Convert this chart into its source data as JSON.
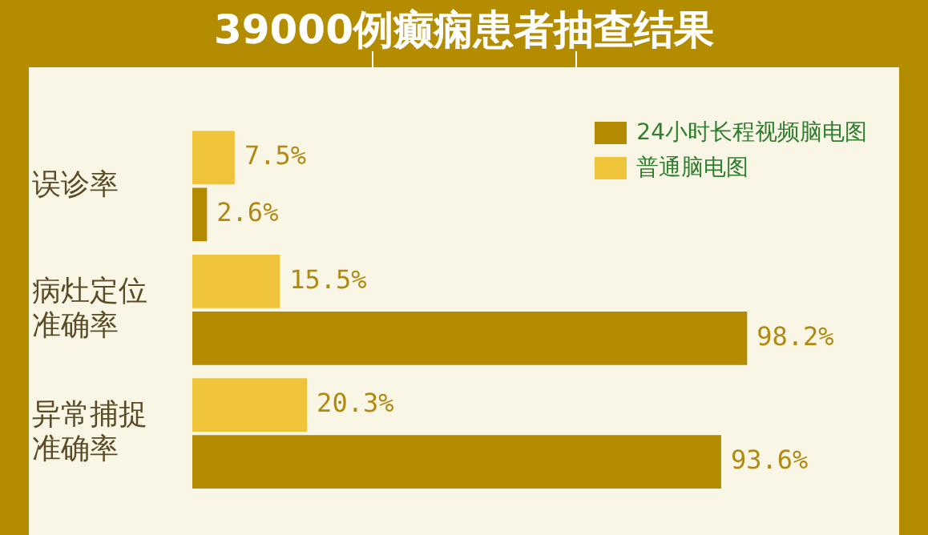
{
  "chart_data": {
    "type": "bar",
    "orientation": "horizontal",
    "title": "39000例癫痫患者抽查结果",
    "categories": [
      "误诊率",
      "病灶定位准确率",
      "异常捕捉准确率"
    ],
    "series": [
      {
        "name": "普通脑电图",
        "color": "#efc43b",
        "values": [
          7.5,
          15.5,
          20.3
        ],
        "value_labels": [
          "7.5%",
          "15.5%",
          "20.3%"
        ]
      },
      {
        "name": "24小时长程视频脑电图",
        "color": "#b48a00",
        "values": [
          2.6,
          98.2,
          93.6
        ],
        "value_labels": [
          "2.6%",
          "98.2%",
          "93.6%"
        ]
      }
    ],
    "legend": "top right",
    "tick_labels": "y"
  }
}
